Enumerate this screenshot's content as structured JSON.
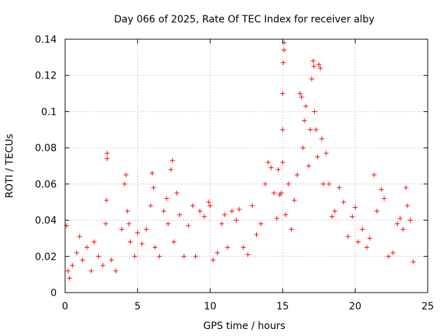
{
  "chart_data": {
    "type": "scatter",
    "title": "Day 066 of 2025, Rate Of TEC Index for receiver alby",
    "xlabel": "GPS time / hours",
    "ylabel": "ROTI / TECUs",
    "xlim": [
      0,
      25
    ],
    "ylim": [
      0,
      0.14
    ],
    "xticks": [
      0,
      5,
      10,
      15,
      20,
      25
    ],
    "xtick_labels": [
      "0",
      "5",
      "10",
      "15",
      "20",
      "25"
    ],
    "yticks": [
      0,
      0.02,
      0.04,
      0.06,
      0.08,
      0.1,
      0.12,
      0.14
    ],
    "ytick_labels": [
      "0",
      "0.02",
      "0.04",
      "0.06",
      "0.08",
      "0.1",
      "0.12",
      "0.14"
    ],
    "grid": true,
    "marker": "+",
    "series_color": "#ff0000",
    "series": [
      {
        "name": "ROTI",
        "x": [
          0.1,
          0.2,
          0.3,
          0.5,
          0.8,
          1.0,
          1.2,
          1.5,
          1.8,
          2.0,
          2.3,
          2.6,
          2.8,
          2.9,
          2.9,
          2.85,
          3.2,
          3.5,
          3.9,
          4.1,
          4.2,
          4.3,
          4.4,
          4.5,
          4.8,
          5.0,
          5.3,
          5.6,
          5.9,
          6.0,
          6.1,
          6.2,
          6.5,
          6.8,
          7.0,
          7.1,
          7.3,
          7.4,
          7.5,
          7.7,
          7.9,
          8.2,
          8.5,
          8.8,
          9.0,
          9.3,
          9.6,
          9.9,
          10.0,
          10.2,
          10.5,
          10.8,
          11.0,
          11.2,
          11.5,
          11.8,
          12.0,
          12.3,
          12.6,
          12.9,
          13.2,
          13.5,
          13.8,
          14.0,
          14.2,
          14.4,
          14.6,
          14.7,
          14.8,
          14.9,
          15.0,
          15.0,
          15.05,
          15.1,
          15.1,
          15.0,
          15.2,
          15.4,
          15.6,
          15.8,
          16.0,
          16.2,
          16.3,
          16.4,
          16.5,
          16.6,
          16.8,
          16.9,
          17.0,
          17.1,
          17.15,
          17.2,
          17.3,
          17.4,
          17.5,
          17.6,
          17.7,
          17.8,
          18.0,
          18.2,
          18.4,
          18.6,
          18.9,
          19.2,
          19.5,
          19.8,
          20.0,
          20.2,
          20.5,
          20.8,
          21.0,
          21.3,
          21.5,
          21.8,
          22.0,
          22.3,
          22.6,
          22.9,
          23.1,
          23.3,
          23.5,
          23.6,
          23.8,
          24.0
        ],
        "y": [
          0.037,
          0.012,
          0.008,
          0.015,
          0.022,
          0.031,
          0.018,
          0.025,
          0.012,
          0.028,
          0.02,
          0.015,
          0.038,
          0.077,
          0.074,
          0.051,
          0.018,
          0.012,
          0.035,
          0.06,
          0.065,
          0.045,
          0.038,
          0.028,
          0.02,
          0.033,
          0.027,
          0.035,
          0.048,
          0.066,
          0.058,
          0.025,
          0.02,
          0.045,
          0.052,
          0.038,
          0.068,
          0.073,
          0.028,
          0.055,
          0.043,
          0.02,
          0.037,
          0.048,
          0.02,
          0.045,
          0.042,
          0.05,
          0.048,
          0.018,
          0.022,
          0.038,
          0.043,
          0.025,
          0.045,
          0.04,
          0.046,
          0.025,
          0.021,
          0.048,
          0.032,
          0.038,
          0.06,
          0.072,
          0.069,
          0.055,
          0.041,
          0.068,
          0.054,
          0.055,
          0.09,
          0.11,
          0.127,
          0.138,
          0.134,
          0.072,
          0.043,
          0.06,
          0.035,
          0.051,
          0.065,
          0.11,
          0.108,
          0.08,
          0.095,
          0.103,
          0.07,
          0.09,
          0.118,
          0.128,
          0.125,
          0.1,
          0.09,
          0.075,
          0.126,
          0.124,
          0.085,
          0.06,
          0.077,
          0.06,
          0.042,
          0.045,
          0.058,
          0.05,
          0.031,
          0.042,
          0.047,
          0.028,
          0.035,
          0.025,
          0.03,
          0.065,
          0.045,
          0.057,
          0.052,
          0.02,
          0.022,
          0.038,
          0.041,
          0.035,
          0.058,
          0.048,
          0.04,
          0.017
        ]
      }
    ]
  }
}
